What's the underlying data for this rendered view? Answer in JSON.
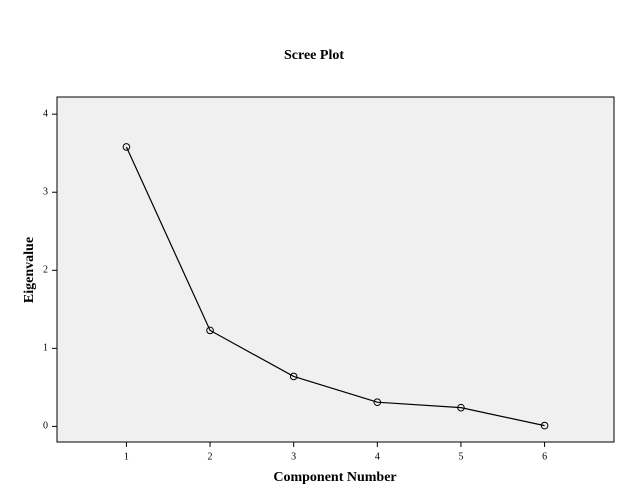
{
  "chart_data": {
    "type": "line",
    "title": "Scree Plot",
    "x_label": "Component Number",
    "y_label": "Eigenvalue",
    "x": [
      1,
      2,
      3,
      4,
      5,
      6
    ],
    "values": [
      3.58,
      1.23,
      0.64,
      0.31,
      0.24,
      0.01
    ],
    "color": "#000000",
    "xlim": [
      0.17,
      6.83
    ],
    "xticks": [
      1,
      2,
      3,
      4,
      5,
      6
    ],
    "ylim": [
      -0.2,
      4.22
    ],
    "yticks": [
      0,
      1,
      2,
      3,
      4
    ],
    "grid": false,
    "markers": true
  }
}
